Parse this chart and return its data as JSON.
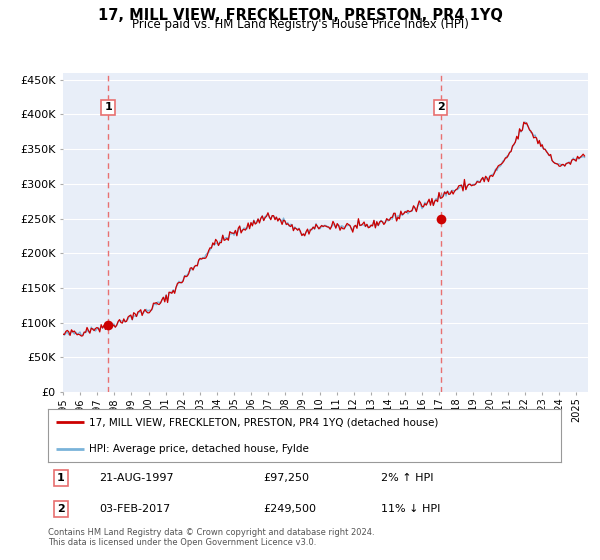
{
  "title": "17, MILL VIEW, FRECKLETON, PRESTON, PR4 1YQ",
  "subtitle": "Price paid vs. HM Land Registry's House Price Index (HPI)",
  "ylim": [
    0,
    460000
  ],
  "xlim_start": 1995.0,
  "xlim_end": 2025.7,
  "sale1_date": 1997.64,
  "sale1_price": 97250,
  "sale2_date": 2017.09,
  "sale2_price": 249500,
  "legend_line1": "17, MILL VIEW, FRECKLETON, PRESTON, PR4 1YQ (detached house)",
  "legend_line2": "HPI: Average price, detached house, Fylde",
  "footer": "Contains HM Land Registry data © Crown copyright and database right 2024.\nThis data is licensed under the Open Government Licence v3.0.",
  "hpi_color": "#7ab3d9",
  "price_color": "#cc0000",
  "dashed_color": "#e87070",
  "background_plot": "#e8eef8",
  "background_fig": "#ffffff",
  "grid_color": "#ffffff"
}
